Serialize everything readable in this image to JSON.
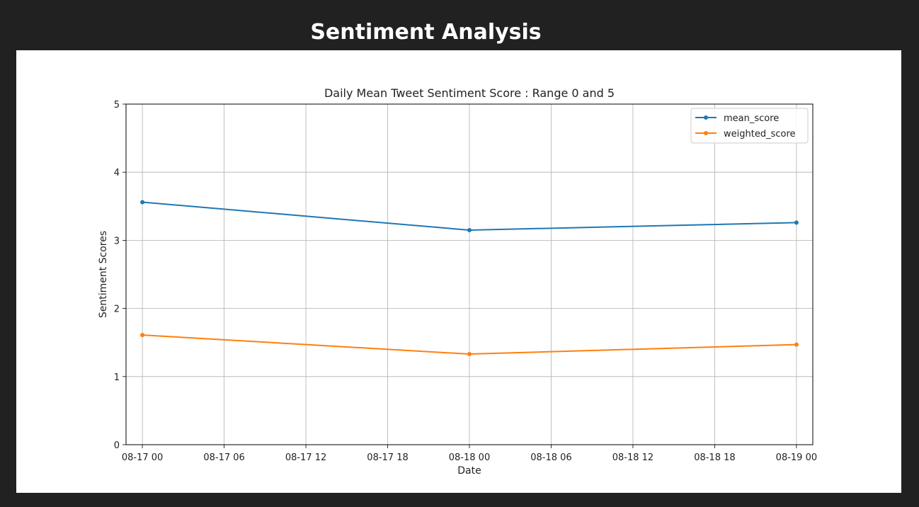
{
  "page": {
    "title": "Sentiment Analysis"
  },
  "chart_data": {
    "type": "line",
    "title": "Daily Mean Tweet Sentiment Score : Range 0 and 5",
    "xlabel": "Date",
    "ylabel": "Sentiment Scores",
    "ylim": [
      0,
      5
    ],
    "yticks": [
      0,
      1,
      2,
      3,
      4,
      5
    ],
    "xlim": [
      "08-16 22:48",
      "08-19 01:12"
    ],
    "xticks": [
      {
        "at": "08-17 00:00",
        "label": "08-17 00"
      },
      {
        "at": "08-17 06:00",
        "label": "08-17 06"
      },
      {
        "at": "08-17 12:00",
        "label": "08-17 12"
      },
      {
        "at": "08-17 18:00",
        "label": "08-17 18"
      },
      {
        "at": "08-18 00:00",
        "label": "08-18 00"
      },
      {
        "at": "08-18 06:00",
        "label": "08-18 06"
      },
      {
        "at": "08-18 12:00",
        "label": "08-18 12"
      },
      {
        "at": "08-18 18:00",
        "label": "08-18 18"
      },
      {
        "at": "08-19 00:00",
        "label": "08-19 00"
      }
    ],
    "x": [
      "08-17 00:00",
      "08-18 00:00",
      "08-19 00:00"
    ],
    "grid": true,
    "legend": "top-right",
    "series": [
      {
        "name": "mean_score",
        "values": [
          3.56,
          3.15,
          3.26
        ],
        "color": "#1f77b4"
      },
      {
        "name": "weighted_score",
        "values": [
          1.61,
          1.33,
          1.47
        ],
        "color": "#ff7f0e"
      }
    ]
  }
}
